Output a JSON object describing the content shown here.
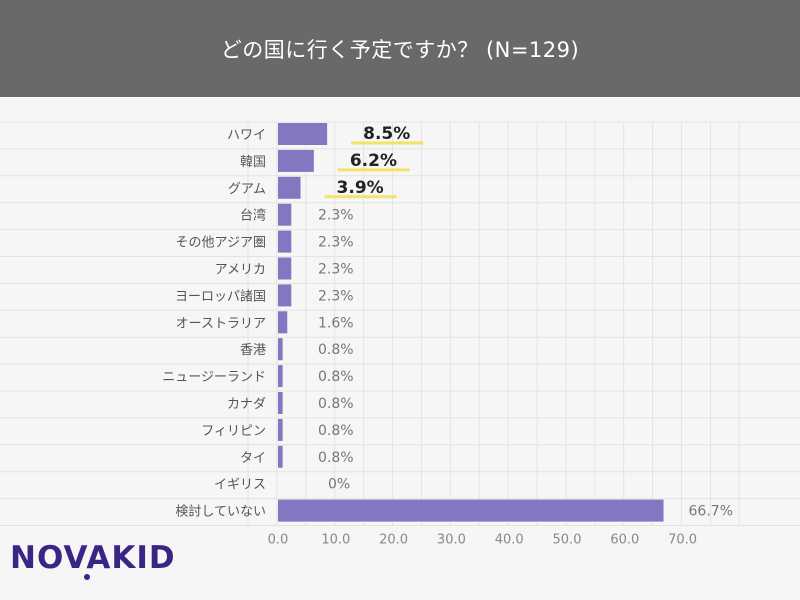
{
  "header": {
    "title": "どの国に行く予定ですか？ (N=129)"
  },
  "logo": {
    "text": "NOVAKID"
  },
  "colors": {
    "header_bg": "#696969",
    "bar": "#8476c1",
    "highlight": "#f3e36a",
    "grid": "#e2e4e2",
    "brand": "#3a2585"
  },
  "chart_data": {
    "type": "bar",
    "orientation": "horizontal",
    "title": "どの国に行く予定ですか？ (N=129)",
    "categories": [
      "ハワイ",
      "韓国",
      "グアム",
      "台湾",
      "その他アジア圏",
      "アメリカ",
      "ヨーロッパ諸国",
      "オーストラリア",
      "香港",
      "ニュージーランド",
      "カナダ",
      "フィリピン",
      "タイ",
      "イギリス",
      "検討していない"
    ],
    "values": [
      8.5,
      6.2,
      3.9,
      2.3,
      2.3,
      2.3,
      2.3,
      1.6,
      0.8,
      0.8,
      0.8,
      0.8,
      0.8,
      0,
      66.7
    ],
    "labels": [
      "8.5%",
      "6.2%",
      "3.9%",
      "2.3%",
      "2.3%",
      "2.3%",
      "2.3%",
      "1.6%",
      "0.8%",
      "0.8%",
      "0.8%",
      "0.8%",
      "0.8%",
      "0%",
      "66.7%"
    ],
    "highlighted": [
      true,
      true,
      true,
      false,
      false,
      false,
      false,
      false,
      false,
      false,
      false,
      false,
      false,
      false,
      false
    ],
    "xlim": [
      0,
      70
    ],
    "xticks": [
      "0.0",
      "10.0",
      "20.0",
      "30.0",
      "40.0",
      "50.0",
      "60.0",
      "70.0"
    ],
    "grid": true
  }
}
